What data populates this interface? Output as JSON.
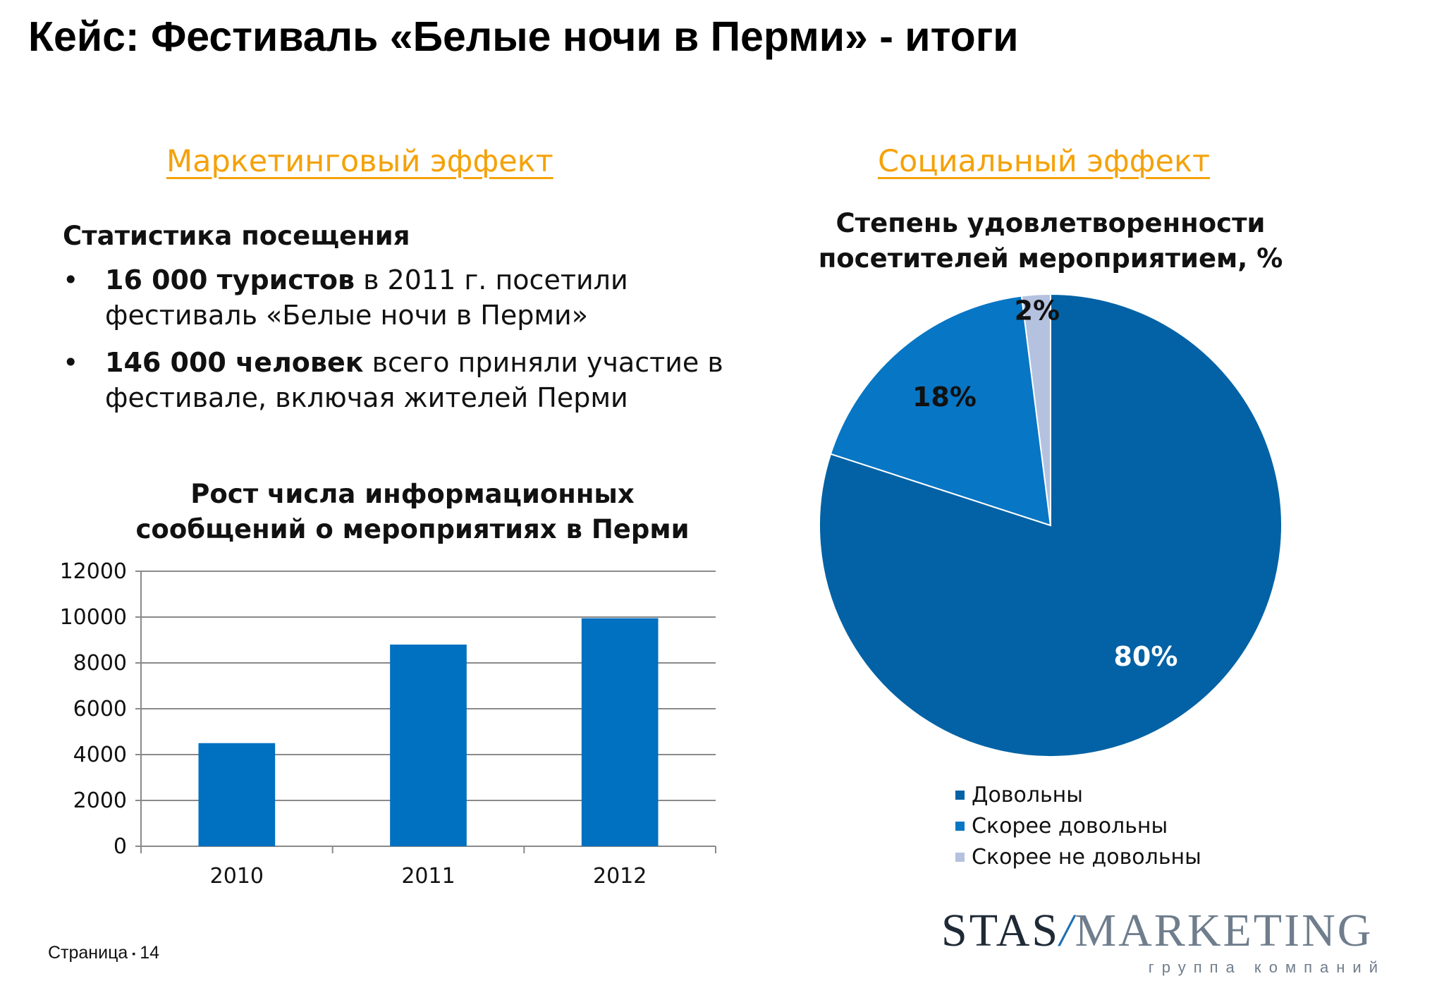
{
  "title": "Кейс: Фестиваль «Белые ночи в Перми» - итоги",
  "left": {
    "section_heading": "Маркетинговый эффект",
    "stats_heading": "Статистика посещения",
    "bullets": [
      {
        "bold": "16 000 туристов",
        "rest": " в 2011 г. посетили фестиваль «Белые ночи в Перми»"
      },
      {
        "bold": "146 000 человек",
        "rest": " всего приняли участие в фестивале, включая жителей Перми"
      }
    ]
  },
  "right": {
    "section_heading": "Социальный эффект"
  },
  "chart_data": [
    {
      "type": "bar",
      "title": "Рост числа информационных сообщений о мероприятиях в Перми",
      "categories": [
        "2010",
        "2011",
        "2012"
      ],
      "values": [
        4500,
        8800,
        9950
      ],
      "ylim": [
        0,
        12000
      ],
      "yticks": [
        "0",
        "2000",
        "4000",
        "6000",
        "8000",
        "10000",
        "12000"
      ],
      "grid": true,
      "color": "#0070C0"
    },
    {
      "type": "pie",
      "title": "Степень удовлетворенности посетителей мероприятием, %",
      "labels": [
        "Довольны",
        "Скорее довольны",
        "Скорее не довольны"
      ],
      "values": [
        80,
        18,
        2
      ],
      "value_labels": [
        "80%",
        "18%",
        "2%"
      ],
      "colors": [
        "#0262A5",
        "#0776C4",
        "#B4C2DF"
      ],
      "legend_position": "bottom"
    }
  ],
  "logo": {
    "text_dark": "STAS",
    "slash": "/",
    "text_light": "MARKETING",
    "subtitle": "группа компаний"
  },
  "footer": {
    "label": "Страница",
    "separator": "▪",
    "page": "14"
  }
}
